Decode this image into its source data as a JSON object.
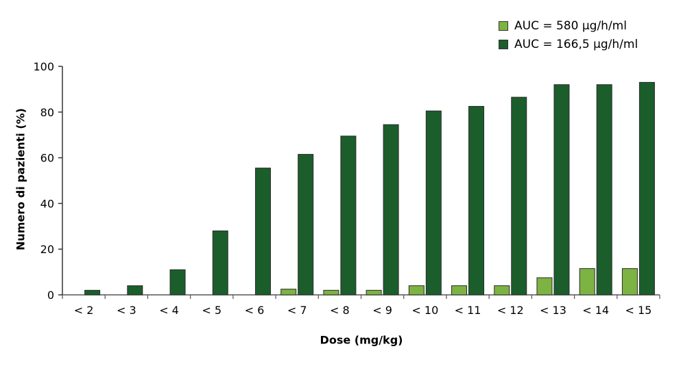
{
  "chart_data": {
    "type": "bar",
    "categories": [
      "< 2",
      "< 3",
      "< 4",
      "< 5",
      "< 6",
      "< 7",
      "< 8",
      "< 9",
      "< 10",
      "< 11",
      "< 12",
      "< 13",
      "< 14",
      "< 15"
    ],
    "series": [
      {
        "name": "AUC = 580 µg/h/ml",
        "color": "#7cb342",
        "values": [
          0,
          0,
          0,
          0,
          0,
          2.5,
          2,
          2,
          4,
          4,
          4,
          7.5,
          11.5,
          11.5
        ]
      },
      {
        "name": "AUC = 166,5 µg/h/ml",
        "color": "#1b5e2b",
        "values": [
          2,
          4,
          11,
          28,
          55.5,
          61.5,
          69.5,
          74.5,
          80.5,
          82.5,
          86.5,
          92,
          92,
          93
        ]
      }
    ],
    "xlabel": "Dose (mg/kg)",
    "ylabel": "Numero di pazienti (%)",
    "ylim": [
      0,
      100
    ],
    "yticks": [
      0,
      20,
      40,
      60,
      80,
      100
    ],
    "grid": false,
    "legend_position": "top-right"
  }
}
